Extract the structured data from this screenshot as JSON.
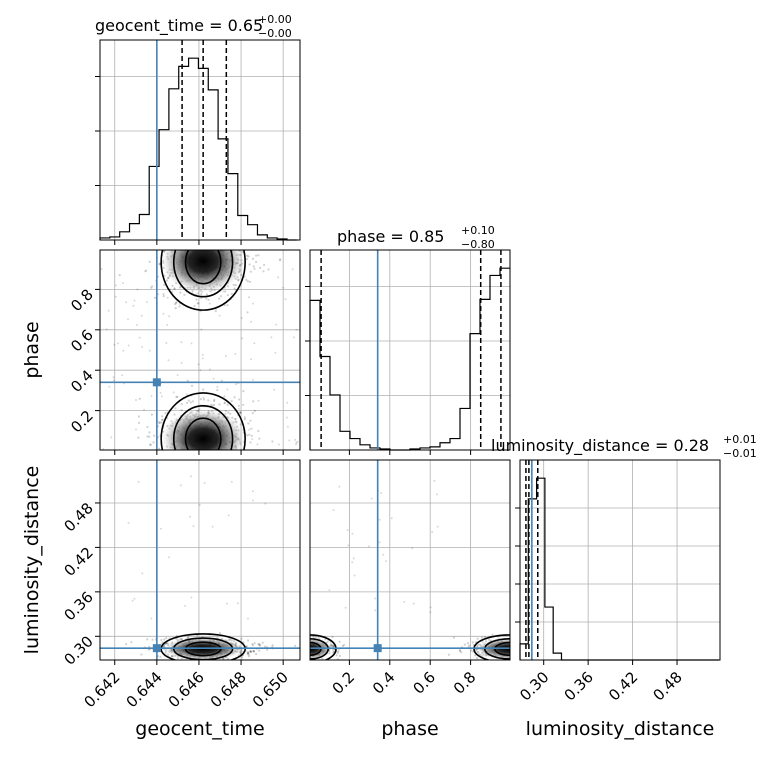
{
  "chart_data": {
    "type": "corner",
    "parameters": [
      "geocent_time",
      "phase",
      "luminosity_distance"
    ],
    "truths": {
      "geocent_time": 0.644,
      "phase": 0.34,
      "luminosity_distance": 0.284
    },
    "truth_color": "#4682b4",
    "grid": true,
    "titles": [
      {
        "param": "geocent_time",
        "text": "geocent_time = 0.65",
        "plus": "+0.00",
        "minus": "−0.00"
      },
      {
        "param": "phase",
        "text": "phase = 0.85",
        "plus": "+0.10",
        "minus": "−0.80"
      },
      {
        "param": "luminosity_distance",
        "text": "luminosity_distance = 0.28",
        "plus": "+0.01",
        "minus": "−0.01"
      }
    ],
    "axis_labels": {
      "geocent_time": "geocent_time",
      "phase": "phase",
      "luminosity_distance": "luminosity_distance"
    },
    "ticks": {
      "geocent_time": [
        "0.642",
        "0.644",
        "0.646",
        "0.648",
        "0.650"
      ],
      "phase": [
        "0.2",
        "0.4",
        "0.6",
        "0.8"
      ],
      "luminosity_distance": [
        "0.30",
        "0.36",
        "0.42",
        "0.48"
      ]
    },
    "ranges": {
      "geocent_time": [
        0.6413,
        0.6508
      ],
      "phase": [
        0.005,
        0.995
      ],
      "luminosity_distance": [
        0.268,
        0.538
      ]
    },
    "histograms": {
      "geocent_time": {
        "edges_start": 0.6413,
        "bin_width": 0.0004675,
        "counts": [
          2,
          3,
          8,
          16,
          25,
          72,
          108,
          148,
          170,
          178,
          168,
          147,
          99,
          65,
          24,
          15,
          5,
          2,
          1,
          0
        ],
        "quantiles": [
          0.6452,
          0.6462,
          0.6473
        ]
      },
      "phase": {
        "edges_start": 0.005,
        "bin_width": 0.0495,
        "counts": [
          144,
          90,
          53,
          18,
          11,
          5,
          2,
          1,
          0,
          0,
          1,
          2,
          3,
          7,
          11,
          40,
          112,
          145,
          168,
          175
        ],
        "quantiles": [
          0.06,
          0.85,
          0.95
        ]
      },
      "luminosity_distance": {
        "edges_start": 0.268,
        "bin_width": 0.0112,
        "counts": [
          14,
          140,
          158,
          46,
          6,
          0,
          0,
          0,
          0,
          0,
          0,
          0,
          0,
          0,
          0,
          0,
          0,
          0,
          0,
          0,
          0,
          0,
          0,
          0
        ],
        "quantiles": [
          0.276,
          0.28,
          0.292
        ]
      }
    }
  }
}
